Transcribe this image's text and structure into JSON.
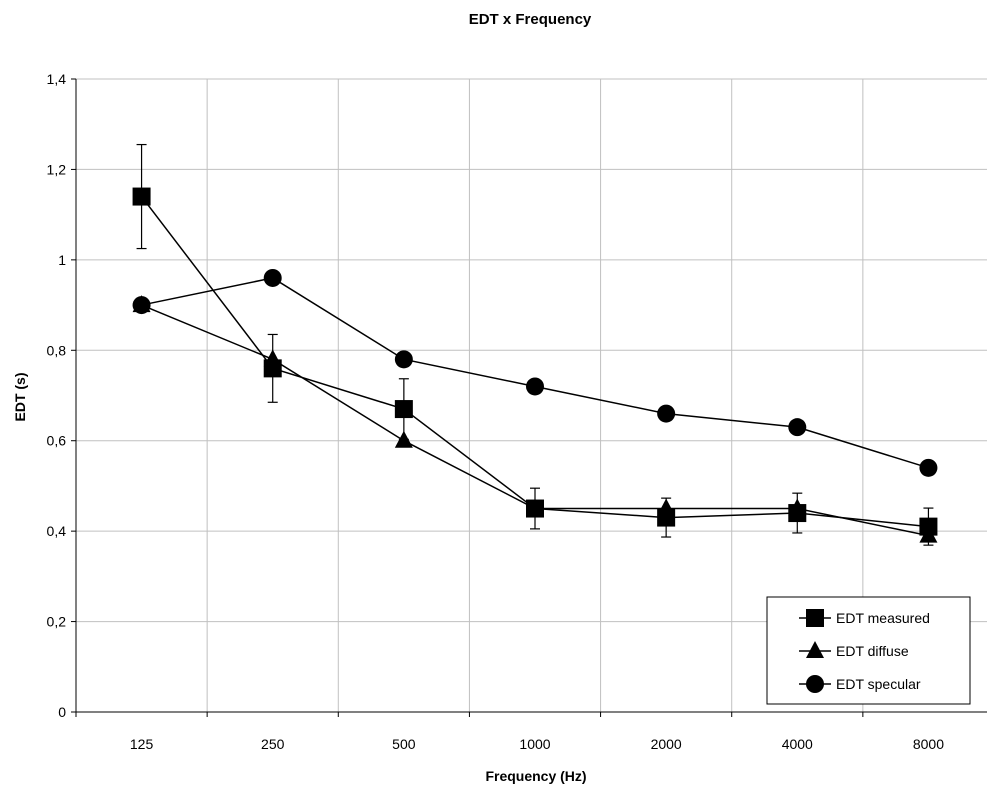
{
  "chart_data": {
    "type": "line",
    "title": "EDT x Frequency",
    "xlabel": "Frequency (Hz)",
    "ylabel": "EDT (s)",
    "categories": [
      "125",
      "250",
      "500",
      "1000",
      "2000",
      "4000",
      "8000"
    ],
    "ylim": [
      0,
      1.4
    ],
    "yticks": [
      {
        "value": 0,
        "label": "0"
      },
      {
        "value": 0.2,
        "label": "0,2"
      },
      {
        "value": 0.4,
        "label": "0,4"
      },
      {
        "value": 0.6,
        "label": "0,6"
      },
      {
        "value": 0.8,
        "label": "0,8"
      },
      {
        "value": 1.0,
        "label": "1"
      },
      {
        "value": 1.2,
        "label": "1,2"
      },
      {
        "value": 1.4,
        "label": "1,4"
      }
    ],
    "grid": true,
    "legend_position": "bottom-right",
    "series": [
      {
        "name": "EDT measured",
        "marker": "square",
        "values": [
          1.14,
          0.76,
          0.67,
          0.45,
          0.43,
          0.44,
          0.41
        ],
        "error": [
          0.115,
          0.075,
          0.067,
          0.045,
          0.043,
          0.044,
          0.041
        ]
      },
      {
        "name": "EDT diffuse",
        "marker": "triangle",
        "values": [
          0.9,
          0.78,
          0.6,
          0.45,
          0.45,
          0.45,
          0.39
        ]
      },
      {
        "name": "EDT specular",
        "marker": "circle",
        "values": [
          0.9,
          0.96,
          0.78,
          0.72,
          0.66,
          0.63,
          0.54
        ]
      }
    ],
    "colors": {
      "line": "#000000",
      "grid": "#c0c0c0",
      "background": "#ffffff"
    }
  }
}
